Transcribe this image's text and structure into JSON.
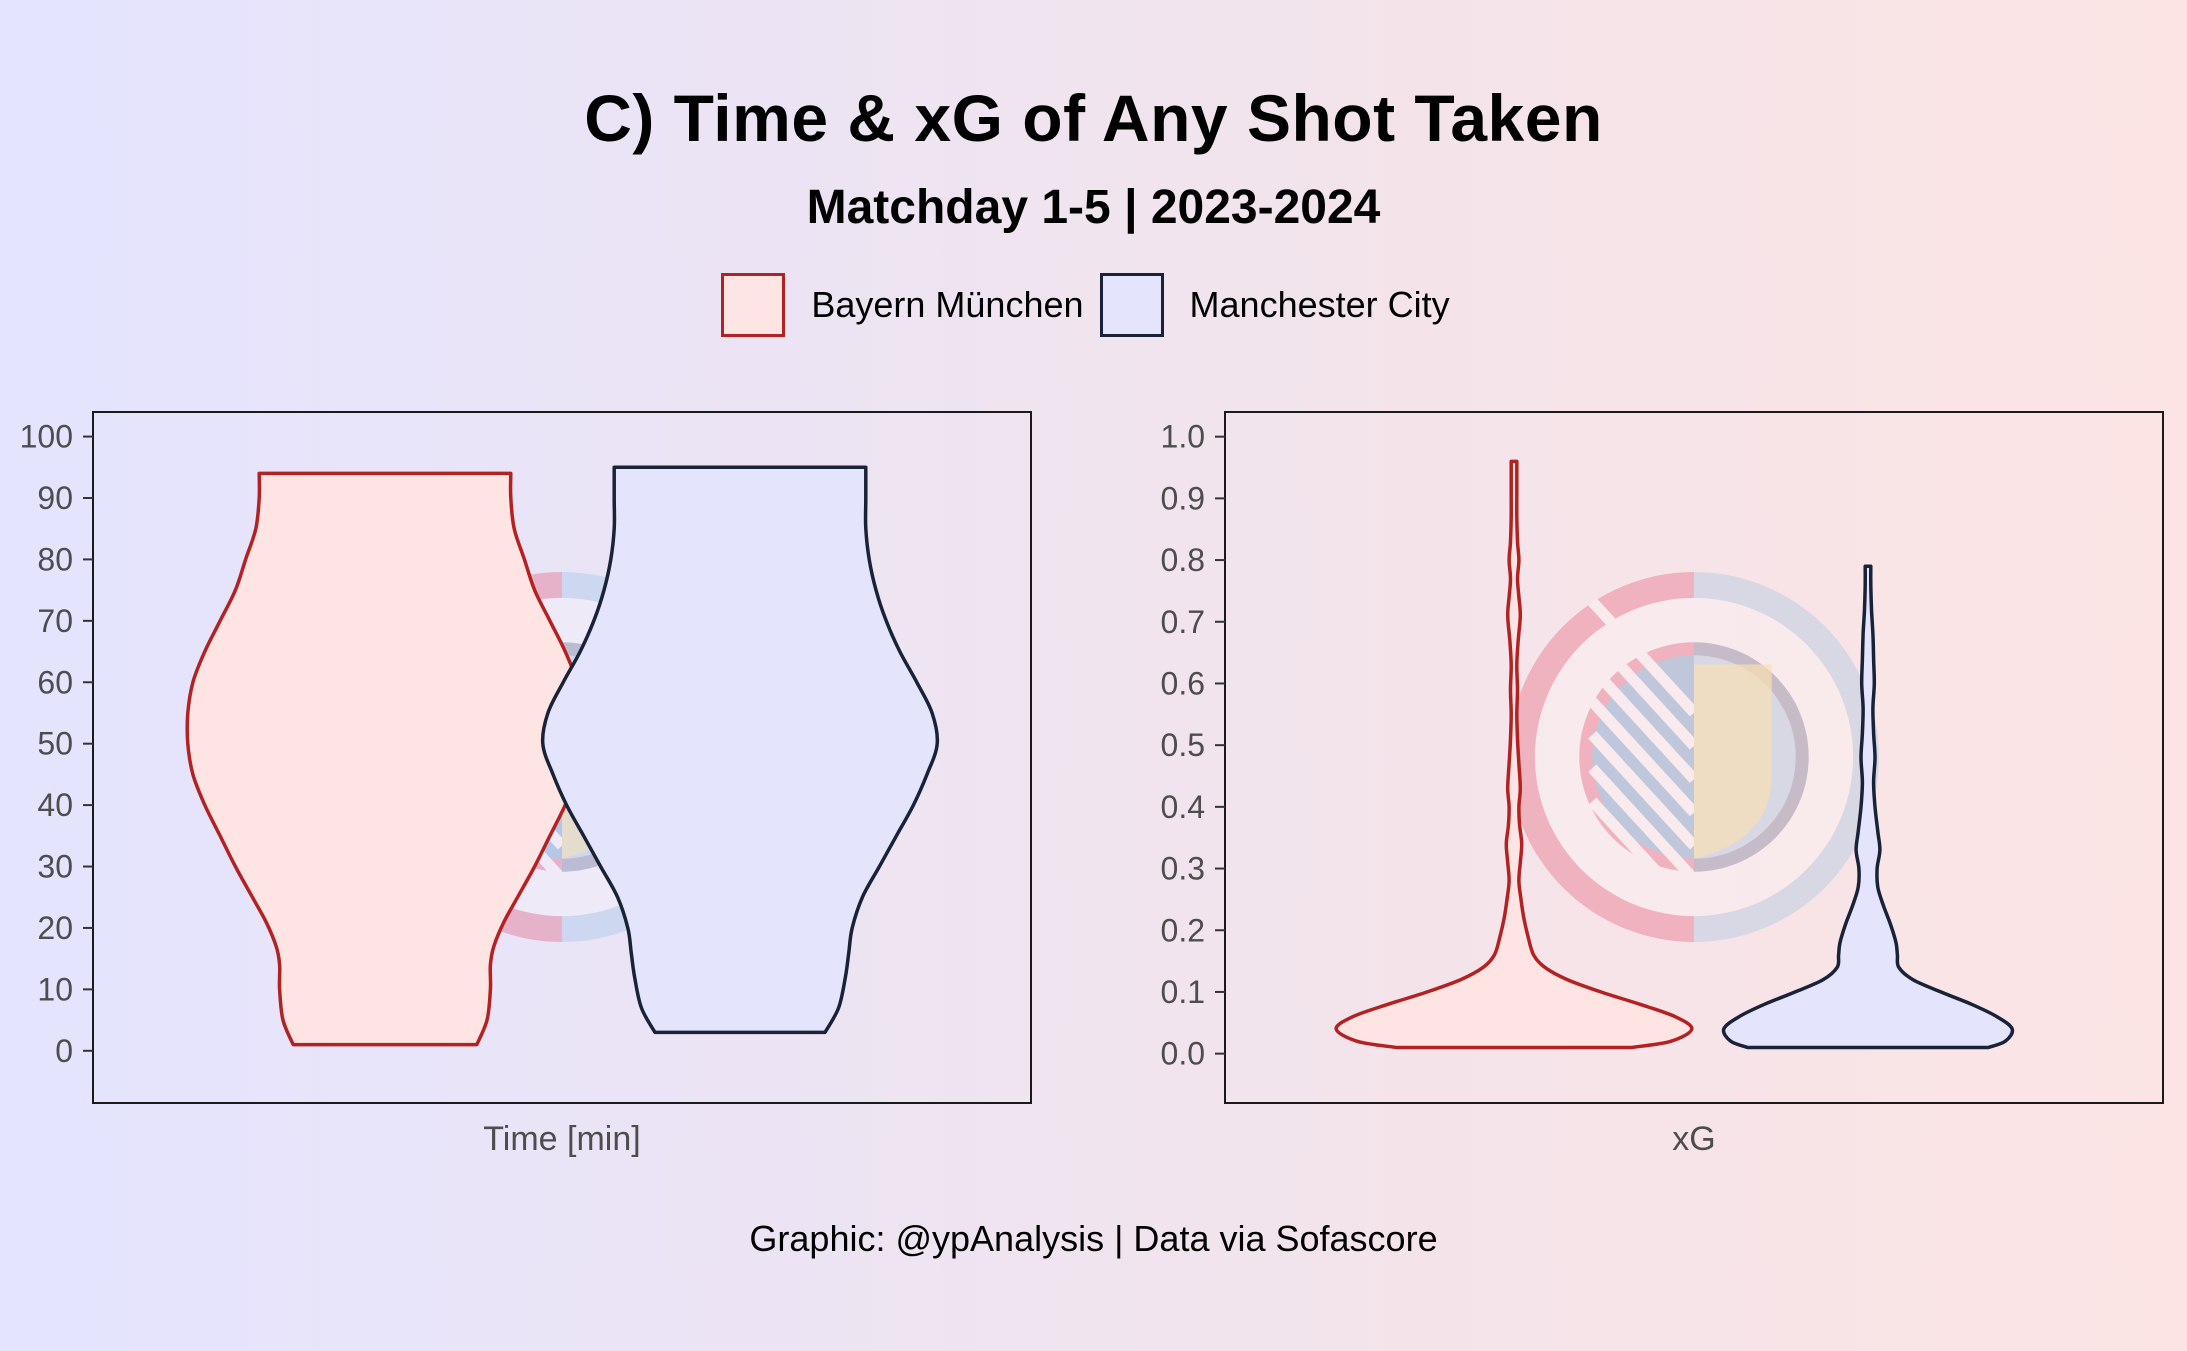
{
  "title": "C) Time & xG of Any Shot Taken",
  "subtitle": "Matchday 1-5 | 2023-2024",
  "footer": "Graphic: @ypAnalysis | Data via Sofascore",
  "colors": {
    "bayern_line": "#b22222",
    "bayern_fill": "#ffe4e4",
    "city_line": "#1a2238",
    "city_fill": "#e4e4fc"
  },
  "legend": [
    {
      "name": "Bayern München"
    },
    {
      "name": "Manchester City"
    }
  ],
  "watermark": {
    "logos": [
      "fc-bayern-muenchen-logo",
      "manchester-city-logo"
    ]
  },
  "chart_data": [
    {
      "type": "violin",
      "xlabel": "Time [min]",
      "ylabel": "",
      "ylim": [
        -8.5,
        104
      ],
      "yticks": [
        "0",
        "10",
        "20",
        "30",
        "40",
        "50",
        "60",
        "70",
        "80",
        "90",
        "100"
      ],
      "series": [
        {
          "name": "Bayern München",
          "profile": [
            {
              "y": 1,
              "w": 0.54
            },
            {
              "y": 5,
              "w": 0.6
            },
            {
              "y": 10,
              "w": 0.62
            },
            {
              "y": 14,
              "w": 0.62
            },
            {
              "y": 17,
              "w": 0.64
            },
            {
              "y": 21,
              "w": 0.7
            },
            {
              "y": 25,
              "w": 0.78
            },
            {
              "y": 30,
              "w": 0.88
            },
            {
              "y": 35,
              "w": 0.97
            },
            {
              "y": 40,
              "w": 1.06
            },
            {
              "y": 45,
              "w": 1.13
            },
            {
              "y": 50,
              "w": 1.16
            },
            {
              "y": 55,
              "w": 1.16
            },
            {
              "y": 60,
              "w": 1.13
            },
            {
              "y": 65,
              "w": 1.06
            },
            {
              "y": 70,
              "w": 0.97
            },
            {
              "y": 75,
              "w": 0.88
            },
            {
              "y": 80,
              "w": 0.82
            },
            {
              "y": 85,
              "w": 0.76
            },
            {
              "y": 90,
              "w": 0.74
            },
            {
              "y": 94,
              "w": 0.74
            }
          ]
        },
        {
          "name": "Manchester City",
          "profile": [
            {
              "y": 3,
              "w": 0.5
            },
            {
              "y": 7,
              "w": 0.58
            },
            {
              "y": 12,
              "w": 0.62
            },
            {
              "y": 16,
              "w": 0.64
            },
            {
              "y": 20,
              "w": 0.66
            },
            {
              "y": 25,
              "w": 0.72
            },
            {
              "y": 30,
              "w": 0.82
            },
            {
              "y": 35,
              "w": 0.92
            },
            {
              "y": 40,
              "w": 1.02
            },
            {
              "y": 45,
              "w": 1.1
            },
            {
              "y": 50,
              "w": 1.16
            },
            {
              "y": 55,
              "w": 1.13
            },
            {
              "y": 60,
              "w": 1.04
            },
            {
              "y": 65,
              "w": 0.94
            },
            {
              "y": 70,
              "w": 0.86
            },
            {
              "y": 75,
              "w": 0.8
            },
            {
              "y": 80,
              "w": 0.76
            },
            {
              "y": 85,
              "w": 0.74
            },
            {
              "y": 90,
              "w": 0.74
            },
            {
              "y": 95,
              "w": 0.74
            }
          ]
        }
      ]
    },
    {
      "type": "violin",
      "xlabel": "xG",
      "ylabel": "",
      "ylim": [
        -0.08,
        1.04
      ],
      "yticks": [
        "0.0",
        "0.1",
        "0.2",
        "0.3",
        "0.4",
        "0.5",
        "0.6",
        "0.7",
        "0.8",
        "0.9",
        "1.0"
      ],
      "series": [
        {
          "name": "Bayern München",
          "profile": [
            {
              "y": 0.01,
              "w": 0.84
            },
            {
              "y": 0.02,
              "w": 1.12
            },
            {
              "y": 0.04,
              "w": 1.27
            },
            {
              "y": 0.06,
              "w": 1.15
            },
            {
              "y": 0.08,
              "w": 0.9
            },
            {
              "y": 0.1,
              "w": 0.62
            },
            {
              "y": 0.12,
              "w": 0.38
            },
            {
              "y": 0.14,
              "w": 0.22
            },
            {
              "y": 0.16,
              "w": 0.14
            },
            {
              "y": 0.19,
              "w": 0.1
            },
            {
              "y": 0.22,
              "w": 0.07
            },
            {
              "y": 0.25,
              "w": 0.05
            },
            {
              "y": 0.28,
              "w": 0.035
            },
            {
              "y": 0.31,
              "w": 0.045
            },
            {
              "y": 0.34,
              "w": 0.055
            },
            {
              "y": 0.37,
              "w": 0.04
            },
            {
              "y": 0.4,
              "w": 0.035
            },
            {
              "y": 0.43,
              "w": 0.045
            },
            {
              "y": 0.47,
              "w": 0.035
            },
            {
              "y": 0.51,
              "w": 0.025
            },
            {
              "y": 0.55,
              "w": 0.02
            },
            {
              "y": 0.59,
              "w": 0.025
            },
            {
              "y": 0.63,
              "w": 0.02
            },
            {
              "y": 0.67,
              "w": 0.03
            },
            {
              "y": 0.71,
              "w": 0.045
            },
            {
              "y": 0.74,
              "w": 0.035
            },
            {
              "y": 0.77,
              "w": 0.025
            },
            {
              "y": 0.8,
              "w": 0.035
            },
            {
              "y": 0.83,
              "w": 0.025
            },
            {
              "y": 0.87,
              "w": 0.02
            },
            {
              "y": 0.91,
              "w": 0.02
            },
            {
              "y": 0.94,
              "w": 0.02
            },
            {
              "y": 0.96,
              "w": 0.02
            }
          ]
        },
        {
          "name": "Manchester City",
          "profile": [
            {
              "y": 0.01,
              "w": 0.86
            },
            {
              "y": 0.02,
              "w": 0.98
            },
            {
              "y": 0.04,
              "w": 1.03
            },
            {
              "y": 0.06,
              "w": 0.92
            },
            {
              "y": 0.08,
              "w": 0.74
            },
            {
              "y": 0.1,
              "w": 0.52
            },
            {
              "y": 0.12,
              "w": 0.32
            },
            {
              "y": 0.14,
              "w": 0.22
            },
            {
              "y": 0.16,
              "w": 0.21
            },
            {
              "y": 0.18,
              "w": 0.2
            },
            {
              "y": 0.21,
              "w": 0.16
            },
            {
              "y": 0.24,
              "w": 0.11
            },
            {
              "y": 0.27,
              "w": 0.07
            },
            {
              "y": 0.3,
              "w": 0.065
            },
            {
              "y": 0.33,
              "w": 0.085
            },
            {
              "y": 0.36,
              "w": 0.07
            },
            {
              "y": 0.4,
              "w": 0.05
            },
            {
              "y": 0.44,
              "w": 0.04
            },
            {
              "y": 0.48,
              "w": 0.05
            },
            {
              "y": 0.52,
              "w": 0.04
            },
            {
              "y": 0.56,
              "w": 0.035
            },
            {
              "y": 0.6,
              "w": 0.045
            },
            {
              "y": 0.64,
              "w": 0.04
            },
            {
              "y": 0.68,
              "w": 0.035
            },
            {
              "y": 0.72,
              "w": 0.025
            },
            {
              "y": 0.76,
              "w": 0.02
            },
            {
              "y": 0.79,
              "w": 0.02
            }
          ]
        }
      ]
    }
  ]
}
